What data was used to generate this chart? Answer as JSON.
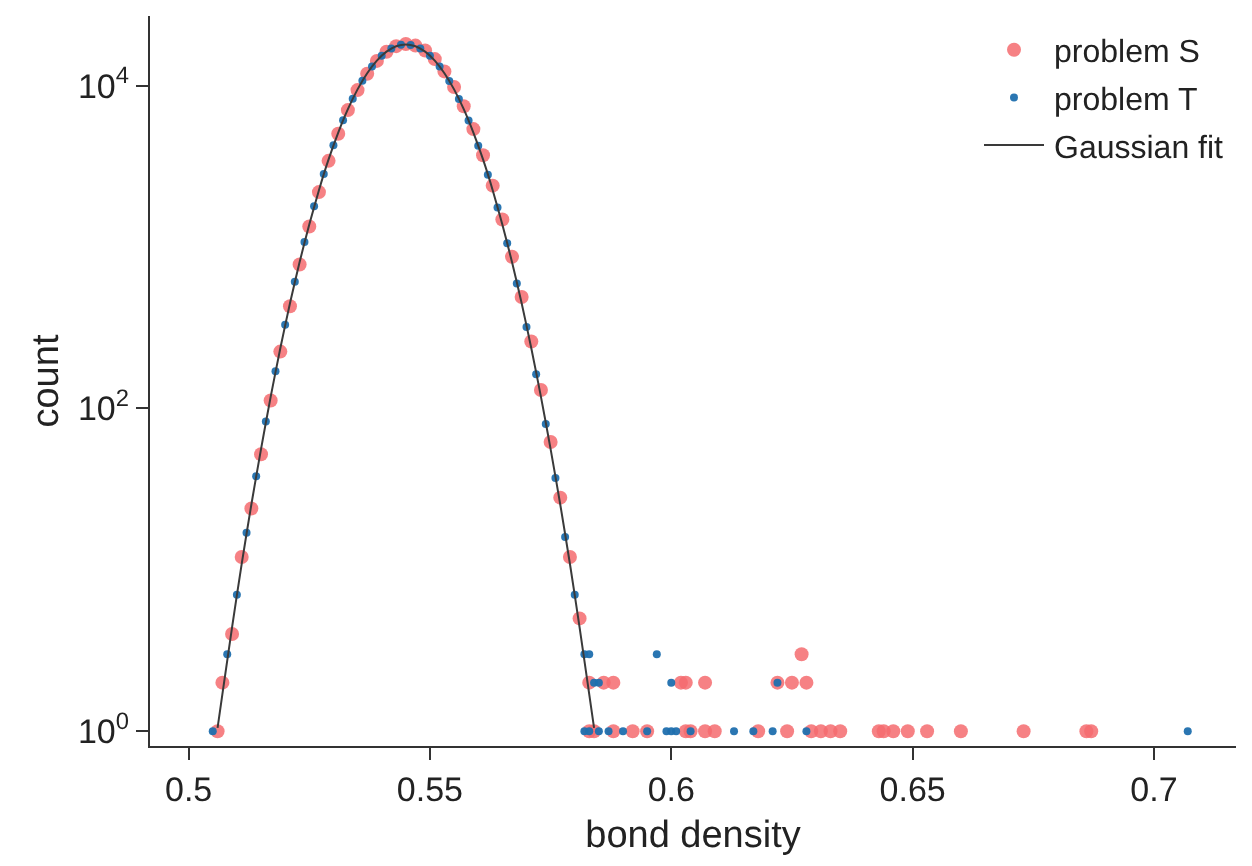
{
  "chart_data": {
    "type": "scatter",
    "xlabel": "bond density",
    "ylabel": "count",
    "log": "y",
    "legend": "top right",
    "xlim": [
      0.492,
      0.717
    ],
    "xticks": [
      0.5,
      0.55,
      0.6,
      0.65,
      0.7
    ],
    "ylim": [
      0.81,
      27000
    ],
    "yticks": [
      {
        "value": 1,
        "label": "10$^{0}$"
      },
      {
        "value": 100,
        "label": "10$^{2}$"
      },
      {
        "value": 10000,
        "label": "10$^{4}$"
      }
    ],
    "series": [
      {
        "name": "problem S",
        "marker": "circle",
        "color": "#f46b6e",
        "x": [
          0.506,
          0.507,
          0.509,
          0.511,
          0.513,
          0.515,
          0.517,
          0.519,
          0.521,
          0.523,
          0.525,
          0.527,
          0.529,
          0.531,
          0.533,
          0.535,
          0.537,
          0.539,
          0.541,
          0.543,
          0.545,
          0.547,
          0.549,
          0.551,
          0.553,
          0.555,
          0.557,
          0.559,
          0.561,
          0.563,
          0.565,
          0.567,
          0.569,
          0.571,
          0.573,
          0.575,
          0.577,
          0.579,
          0.581,
          0.583,
          0.583,
          0.584,
          0.586,
          0.588,
          0.588,
          0.592,
          0.595,
          0.602,
          0.603,
          0.603,
          0.604,
          0.607,
          0.607,
          0.609,
          0.618,
          0.622,
          0.624,
          0.625,
          0.627,
          0.628,
          0.629,
          0.631,
          0.633,
          0.635,
          0.643,
          0.644,
          0.646,
          0.649,
          0.653,
          0.66,
          0.673,
          0.686,
          0.687
        ],
        "values": [
          1,
          2,
          4,
          12,
          24,
          52,
          112,
          225,
          430,
          780,
          1340,
          2190,
          3420,
          5030,
          7050,
          9380,
          11850,
          14230,
          16220,
          17560,
          18100,
          17700,
          16500,
          14600,
          12250,
          9800,
          7450,
          5380,
          3700,
          2400,
          1480,
          870,
          490,
          260,
          130,
          62,
          28,
          12,
          5,
          2,
          1,
          1,
          2,
          1,
          2,
          1,
          1,
          2,
          1,
          2,
          1,
          1,
          2,
          1,
          1,
          2,
          1,
          2,
          3,
          2,
          1,
          1,
          1,
          1,
          1,
          1,
          1,
          1,
          1,
          1,
          1,
          1,
          1
        ]
      },
      {
        "name": "problem T",
        "marker": "circle",
        "color": "#1f6fae",
        "x": [
          0.505,
          0.508,
          0.51,
          0.512,
          0.514,
          0.516,
          0.518,
          0.52,
          0.522,
          0.524,
          0.526,
          0.528,
          0.53,
          0.532,
          0.534,
          0.536,
          0.538,
          0.54,
          0.542,
          0.544,
          0.546,
          0.548,
          0.55,
          0.552,
          0.554,
          0.556,
          0.558,
          0.56,
          0.562,
          0.564,
          0.566,
          0.568,
          0.57,
          0.572,
          0.574,
          0.576,
          0.578,
          0.58,
          0.582,
          0.582,
          0.583,
          0.583,
          0.584,
          0.585,
          0.585,
          0.587,
          0.59,
          0.595,
          0.597,
          0.599,
          0.6,
          0.6,
          0.601,
          0.604,
          0.613,
          0.617,
          0.621,
          0.622,
          0.628,
          0.707
        ],
        "values": [
          1,
          3,
          7,
          17,
          38,
          83,
          170,
          330,
          610,
          1075,
          1790,
          2830,
          4270,
          6100,
          8300,
          10720,
          13150,
          15340,
          17010,
          17890,
          17880,
          16990,
          15320,
          13120,
          10690,
          8270,
          6070,
          4240,
          2800,
          1760,
          1055,
          595,
          320,
          163,
          80,
          37,
          16,
          7,
          3,
          1,
          1,
          3,
          2,
          1,
          2,
          1,
          1,
          1,
          3,
          1,
          1,
          2,
          1,
          1,
          1,
          1,
          1,
          2,
          1,
          1
        ]
      },
      {
        "name": "Gaussian fit",
        "type": "line",
        "marker": "none",
        "color": "#3a3a3a",
        "x": [
          0.506,
          0.507,
          0.509,
          0.511,
          0.513,
          0.515,
          0.517,
          0.519,
          0.521,
          0.523,
          0.525,
          0.527,
          0.529,
          0.531,
          0.533,
          0.535,
          0.537,
          0.539,
          0.541,
          0.543,
          0.545,
          0.547,
          0.549,
          0.551,
          0.553,
          0.555,
          0.557,
          0.559,
          0.561,
          0.563,
          0.565,
          0.567,
          0.569,
          0.571,
          0.573,
          0.575,
          0.577,
          0.579,
          0.581,
          0.583,
          0.584
        ],
        "values": [
          1.05,
          1.7,
          4.4,
          10.9,
          25.4,
          56,
          118,
          236,
          448,
          807,
          1380,
          2250,
          3490,
          5120,
          7150,
          9480,
          11940,
          14290,
          16250,
          17540,
          18000,
          17540,
          16250,
          14290,
          11940,
          9480,
          7150,
          5120,
          3490,
          2250,
          1380,
          807,
          448,
          236,
          118,
          56,
          25.4,
          10.9,
          4.4,
          1.7,
          1.05
        ]
      }
    ]
  }
}
